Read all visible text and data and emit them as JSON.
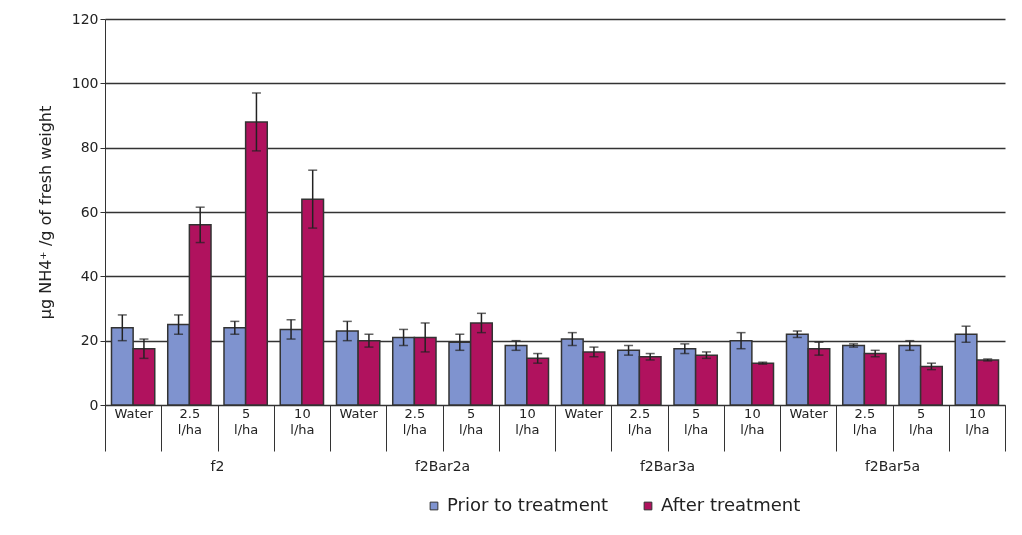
{
  "chart_data": {
    "type": "bar",
    "ylabel": "μg NH4⁺ /g of fresh weight",
    "categories": [
      "Water",
      "2.5 l/ha",
      "5 l/ha",
      "10 l/ha",
      "Water",
      "2.5 l/ha",
      "5 l/ha",
      "10 l/ha",
      "Water",
      "2.5 l/ha",
      "5 l/ha",
      "10 l/ha",
      "Water",
      "2.5 l/ha",
      "5 l/ha",
      "10 l/ha"
    ],
    "series": [
      {
        "name": "Prior to treatment",
        "color": "#7f93cf",
        "values": [
          24,
          25,
          24,
          23.5,
          23,
          21,
          19.5,
          18.5,
          20.5,
          17,
          17.5,
          20,
          22,
          18.5,
          18.5,
          22
        ],
        "errors": [
          4,
          3,
          2,
          3,
          3,
          2.5,
          2.5,
          1.5,
          2,
          1.5,
          1.5,
          2.5,
          1,
          0.5,
          1.5,
          2.5
        ]
      },
      {
        "name": "After treatment",
        "color": "#b0125e",
        "values": [
          17.5,
          56,
          88,
          64,
          20,
          21,
          25.5,
          14.5,
          16.5,
          15,
          15.5,
          13,
          17.5,
          16,
          12,
          14
        ],
        "errors": [
          3,
          5.5,
          9,
          9,
          2,
          4.5,
          3,
          1.5,
          1.5,
          1,
          1,
          0.3,
          2,
          1,
          1,
          0.3
        ]
      }
    ],
    "annotations": [
      "f2",
      "f2Bar2a",
      "f2Bar3a",
      "f2Bar5a"
    ],
    "ylim": [
      0,
      120
    ],
    "yticks": [
      0,
      20,
      40,
      60,
      80,
      100,
      120
    ],
    "grid": "y",
    "legend": "bottom"
  }
}
